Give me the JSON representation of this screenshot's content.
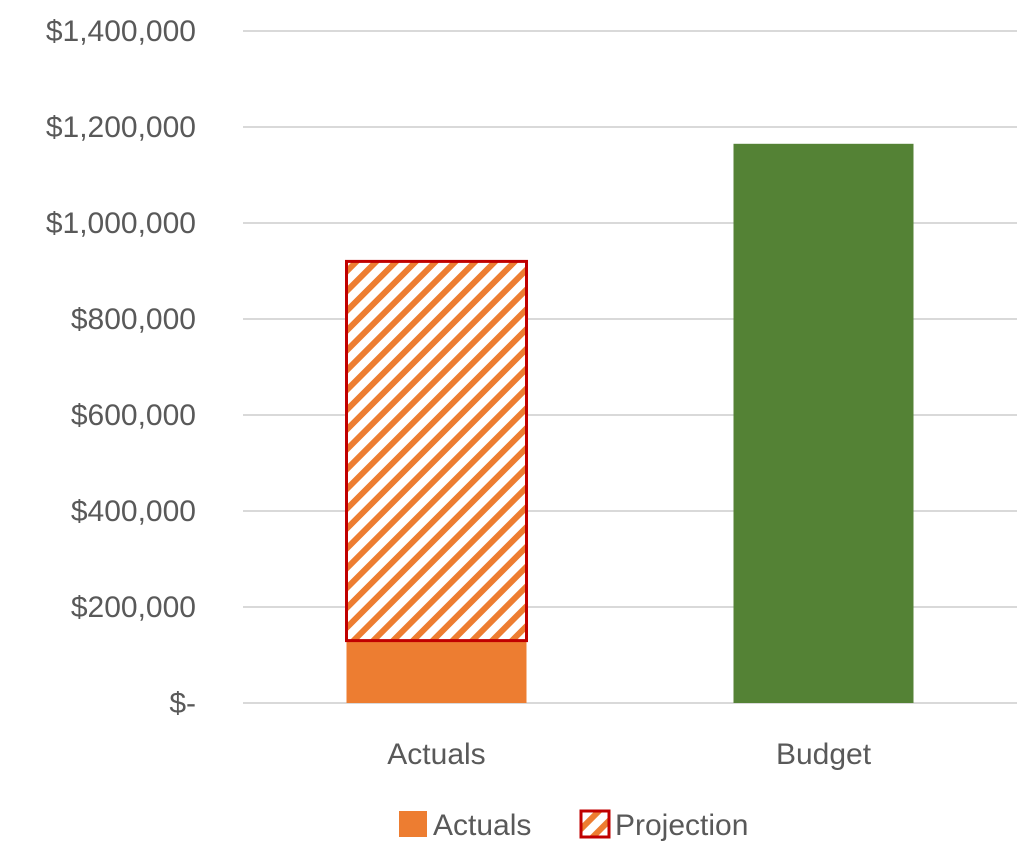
{
  "chart_data": {
    "type": "bar",
    "stacked": true,
    "categories": [
      "Actuals",
      "Budget"
    ],
    "series": [
      {
        "name": "Actuals",
        "values": [
          130000,
          null
        ],
        "color": "#ED7D31",
        "pattern": "solid"
      },
      {
        "name": "Projection",
        "values": [
          790000,
          null
        ],
        "color": "#ED7D31",
        "border_color": "#C00000",
        "pattern": "diagonal-stripes"
      },
      {
        "name": "",
        "values": [
          null,
          1165000
        ],
        "color": "#548235",
        "pattern": "solid"
      }
    ],
    "y_ticks": [
      "$-",
      "$200,000",
      "$400,000",
      "$600,000",
      "$800,000",
      "$1,000,000",
      "$1,200,000",
      "$1,400,000"
    ],
    "ylim": [
      0,
      1400000
    ],
    "grid": true,
    "legend_position": "bottom",
    "legend": [
      {
        "label": "Actuals",
        "swatch": "solid",
        "color": "#ED7D31"
      },
      {
        "label": "Projection",
        "swatch": "diagonal-stripes",
        "color": "#ED7D31",
        "border_color": "#C00000"
      }
    ],
    "gridline_color": "#D9D9D9"
  }
}
